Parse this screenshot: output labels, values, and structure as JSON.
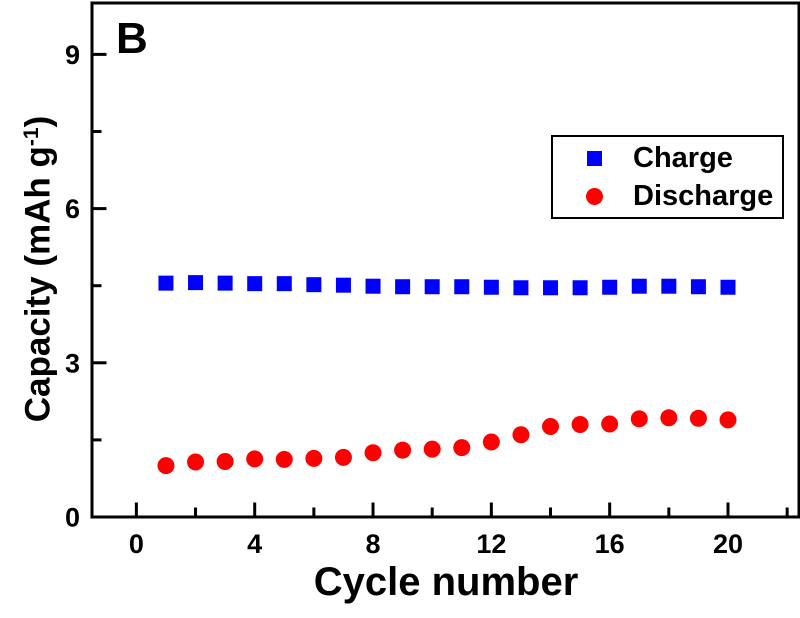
{
  "panel_label": "B",
  "axes": {
    "x_title": "Cycle number",
    "y_title_main": "Capacity (mAh g",
    "y_title_sup": "-1",
    "y_title_close": ")"
  },
  "legend": {
    "items": [
      {
        "label": "Charge",
        "marker": "square",
        "color": "#0000ff"
      },
      {
        "label": "Discharge",
        "marker": "circle",
        "color": "#ff0000"
      }
    ]
  },
  "chart_data": {
    "type": "scatter",
    "title": "",
    "xlabel": "Cycle number",
    "ylabel": "Capacity (mAh g-1)",
    "xlim": [
      -1.5,
      22.4
    ],
    "ylim": [
      0,
      10
    ],
    "x_major_ticks": [
      0,
      4,
      8,
      12,
      16,
      20
    ],
    "x_minor_ticks": [
      2,
      6,
      10,
      14,
      18,
      22
    ],
    "y_major_ticks": [
      0,
      3,
      6,
      9
    ],
    "y_minor_ticks": [
      1.5,
      4.5,
      7.5
    ],
    "grid": false,
    "legend_position": "upper-right",
    "x": [
      1,
      2,
      3,
      4,
      5,
      6,
      7,
      8,
      9,
      10,
      11,
      12,
      13,
      14,
      15,
      16,
      17,
      18,
      19,
      20
    ],
    "series": [
      {
        "name": "Charge",
        "marker": "square",
        "color": "#0000ff",
        "values": [
          4.55,
          4.56,
          4.55,
          4.54,
          4.54,
          4.52,
          4.51,
          4.49,
          4.48,
          4.48,
          4.48,
          4.47,
          4.46,
          4.46,
          4.46,
          4.47,
          4.49,
          4.49,
          4.48,
          4.47
        ]
      },
      {
        "name": "Discharge",
        "marker": "circle",
        "color": "#ff0000",
        "values": [
          1.0,
          1.07,
          1.08,
          1.13,
          1.12,
          1.14,
          1.16,
          1.25,
          1.3,
          1.32,
          1.35,
          1.46,
          1.6,
          1.76,
          1.8,
          1.81,
          1.91,
          1.93,
          1.92,
          1.89
        ]
      }
    ]
  }
}
